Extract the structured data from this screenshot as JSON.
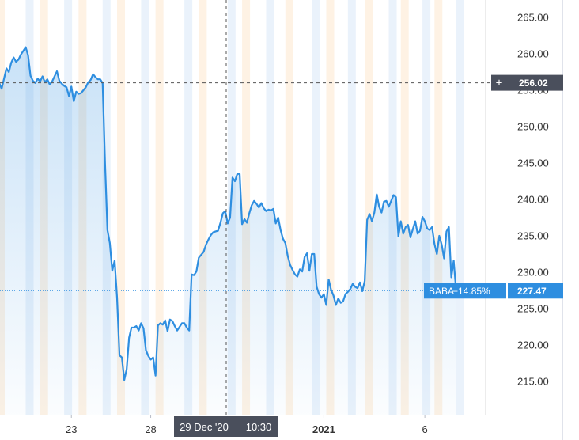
{
  "chart_data": {
    "type": "area",
    "symbol": "BABA",
    "change_label": "−14.85%",
    "last_price_label": "227.47",
    "last_value": 227.47,
    "crosshair": {
      "price_label": "256.02",
      "price": 256.02,
      "date_label": "29 Dec '20",
      "time_label": "10:30",
      "plus_symbol": "+"
    },
    "y_ticks": [
      265,
      260,
      255,
      250,
      245,
      240,
      235,
      230,
      225,
      220,
      215
    ],
    "y_tick_labels": [
      "265.00",
      "260.00",
      "255.00",
      "250.00",
      "245.00",
      "240.00",
      "235.00",
      "230.00",
      "225.00",
      "220.00",
      "215.00"
    ],
    "x_tick_labels": [
      {
        "label": "23",
        "bar": 31,
        "bold": false
      },
      {
        "label": "28",
        "bar": 64,
        "bold": false
      },
      {
        "label": "2021",
        "bar": 136,
        "bold": true
      },
      {
        "label": "6",
        "bar": 178,
        "bold": false
      }
    ],
    "session_bands": [
      {
        "bar": 0,
        "type": "post"
      },
      {
        "bar": 12,
        "type": "pre"
      },
      {
        "bar": 18,
        "type": "post"
      },
      {
        "bar": 28,
        "type": "pre"
      },
      {
        "bar": 34,
        "type": "post"
      },
      {
        "bar": 44,
        "type": "pre"
      },
      {
        "bar": 50,
        "type": "post"
      },
      {
        "bar": 60,
        "type": "pre"
      },
      {
        "bar": 66,
        "type": "post"
      },
      {
        "bar": 78,
        "type": "pre"
      },
      {
        "bar": 84,
        "type": "post"
      },
      {
        "bar": 96,
        "type": "pre"
      },
      {
        "bar": 102,
        "type": "post"
      },
      {
        "bar": 112,
        "type": "pre"
      },
      {
        "bar": 120,
        "type": "post"
      },
      {
        "bar": 131,
        "type": "pre"
      },
      {
        "bar": 137,
        "type": "post"
      },
      {
        "bar": 146,
        "type": "pre"
      },
      {
        "bar": 153,
        "type": "post"
      },
      {
        "bar": 163,
        "type": "pre"
      },
      {
        "bar": 168,
        "type": "post"
      },
      {
        "bar": 177,
        "type": "pre"
      },
      {
        "bar": 182,
        "type": "post"
      },
      {
        "bar": 191,
        "type": "pre"
      }
    ],
    "series": [
      {
        "name": "BABA",
        "color": "#2e8ee0",
        "values": [
          255.5,
          256.0,
          255.2,
          256.6,
          258.0,
          257.5,
          258.8,
          259.5,
          258.9,
          259.2,
          259.9,
          260.4,
          260.9,
          259.8,
          257.0,
          256.3,
          256.0,
          256.6,
          256.2,
          256.9,
          256.1,
          256.5,
          255.8,
          256.2,
          256.9,
          257.6,
          256.3,
          255.9,
          255.6,
          255.4,
          254.2,
          255.5,
          253.5,
          254.8,
          254.5,
          254.6,
          255.0,
          255.4,
          256.1,
          256.4,
          257.2,
          256.8,
          256.5,
          256.5,
          256.0,
          245.0,
          235.8,
          234.0,
          230.2,
          231.6,
          226.5,
          218.6,
          218.3,
          215.2,
          216.7,
          221.0,
          222.4,
          222.4,
          222.6,
          222.0,
          223.0,
          222.3,
          219.3,
          218.5,
          218.0,
          218.3,
          215.8,
          222.7,
          223.0,
          222.8,
          223.4,
          221.9,
          223.5,
          223.3,
          222.6,
          222.0,
          222.5,
          223.0,
          223.0,
          222.4,
          222.0,
          229.7,
          229.6,
          230.1,
          232.0,
          232.4,
          232.8,
          233.8,
          234.5,
          235.1,
          235.5,
          235.6,
          235.7,
          236.8,
          238.1,
          238.4,
          236.7,
          237.5,
          243.0,
          242.5,
          243.5,
          243.5,
          236.6,
          237.3,
          236.8,
          238.1,
          239.2,
          239.8,
          239.4,
          238.9,
          239.5,
          238.8,
          238.4,
          238.6,
          238.5,
          238.7,
          236.7,
          237.5,
          235.8,
          234.6,
          234.0,
          232.2,
          231.0,
          230.3,
          229.7,
          229.4,
          230.4,
          230.1,
          232.1,
          232.6,
          230.2,
          232.5,
          232.5,
          228.0,
          227.0,
          226.5,
          227.0,
          225.5,
          229.0,
          227.6,
          226.8,
          225.5,
          226.4,
          225.8,
          226.0,
          227.0,
          227.3,
          227.7,
          228.4,
          228.0,
          227.8,
          228.6,
          227.4,
          228.8,
          237.2,
          238.0,
          237.0,
          238.2,
          240.7,
          239.0,
          238.2,
          239.7,
          239.8,
          239.0,
          239.8,
          240.6,
          240.3,
          234.9,
          237.0,
          235.3,
          236.2,
          236.5,
          234.8,
          235.9,
          237.0,
          235.3,
          235.7,
          237.6,
          237.0,
          236.0,
          235.8,
          236.2,
          233.9,
          232.5,
          235.0,
          233.8,
          231.9,
          235.6,
          236.2,
          229.3,
          231.6,
          227.47
        ]
      }
    ],
    "grid": false
  }
}
